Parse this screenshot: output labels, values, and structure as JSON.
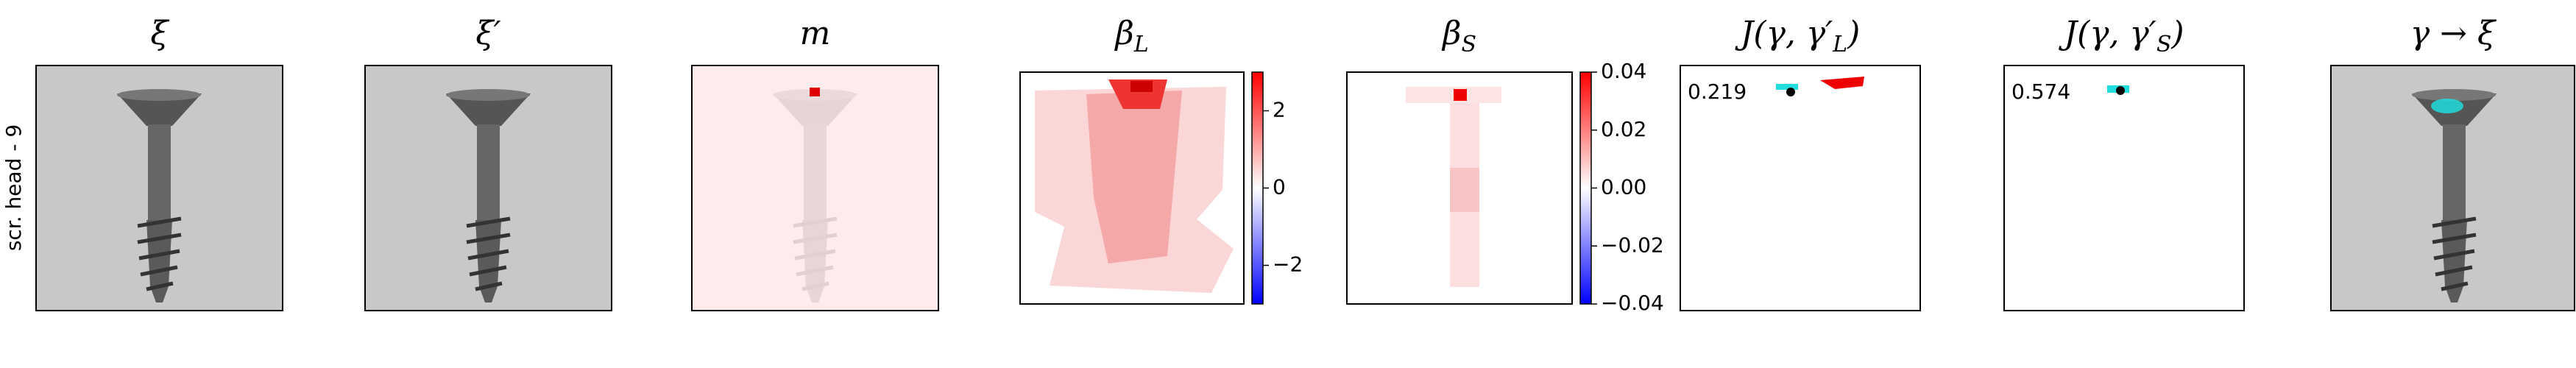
{
  "row_label": "scr. head - 9",
  "panels": [
    {
      "title": {
        "text": "ξ"
      }
    },
    {
      "title": {
        "text": "ξ′"
      }
    },
    {
      "title": {
        "text": "m"
      }
    },
    {
      "title": {
        "text": "β",
        "sub": "L"
      },
      "colorbar": {
        "ylim": [
          -3,
          3
        ],
        "yticks": [
          {
            "value": -2,
            "label": "−2"
          },
          0,
          2
        ]
      }
    },
    {
      "title": {
        "text": "β",
        "sub": "S"
      },
      "colorbar": {
        "ylim": [
          -0.04,
          0.04
        ],
        "yticks": [
          {
            "value": -0.04,
            "label": "−0.04"
          },
          {
            "value": -0.02,
            "label": "−0.02"
          },
          {
            "value": 0,
            "label": "0.00"
          },
          0.02,
          0.04
        ]
      }
    },
    {
      "title": {
        "text": "J(γ, γ′",
        "sub": "L",
        "after": ")"
      },
      "annotation": "0.219"
    },
    {
      "title": {
        "text": "J(γ, γ′",
        "sub": "S",
        "after": ")"
      },
      "annotation": "0.574"
    },
    {
      "title": {
        "text": "γ → ξ"
      }
    }
  ]
}
